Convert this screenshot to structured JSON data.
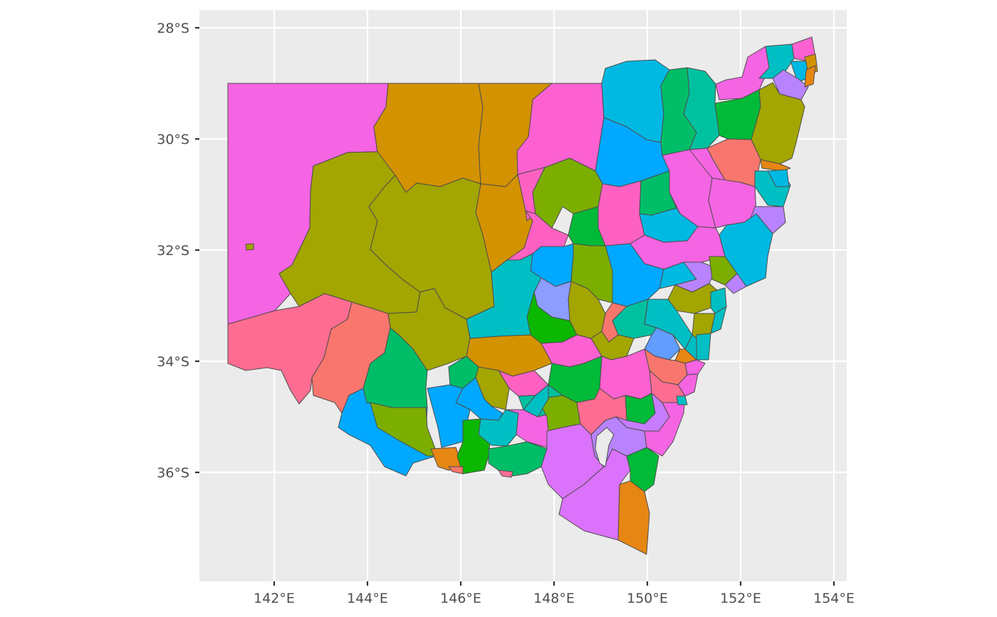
{
  "map": {
    "type": "choropleth",
    "region": "New South Wales local government areas",
    "background": "#ebebeb",
    "grid_color": "#ffffff",
    "border_color": "#4d4d4d",
    "y_axis": {
      "ticks": [
        {
          "lat": -28,
          "label": "28°S"
        },
        {
          "lat": -30,
          "label": "30°S"
        },
        {
          "lat": -32,
          "label": "32°S"
        },
        {
          "lat": -34,
          "label": "34°S"
        },
        {
          "lat": -36,
          "label": "36°S"
        }
      ]
    },
    "x_axis": {
      "ticks": [
        {
          "lon": 142,
          "label": "142°E"
        },
        {
          "lon": 144,
          "label": "144°E"
        },
        {
          "lon": 146,
          "label": "146°E"
        },
        {
          "lon": 148,
          "label": "148°E"
        },
        {
          "lon": 150,
          "label": "150°E"
        },
        {
          "lon": 152,
          "label": "152°E"
        },
        {
          "lon": 154,
          "label": "154°E"
        }
      ]
    },
    "palette": [
      "#f564e3",
      "#d39200",
      "#fd61d1",
      "#00b9e3",
      "#00c19f",
      "#00ba38",
      "#93aa00",
      "#f8766d",
      "#619cff",
      "#db72fb",
      "#e68613",
      "#00a9ff",
      "#00bfc4",
      "#b983ff",
      "#7cae00",
      "#ff61c3",
      "#0cb702",
      "#8c9cff",
      "#a3a500",
      "#00be67",
      "#c77cff",
      "#ff6c91"
    ]
  }
}
